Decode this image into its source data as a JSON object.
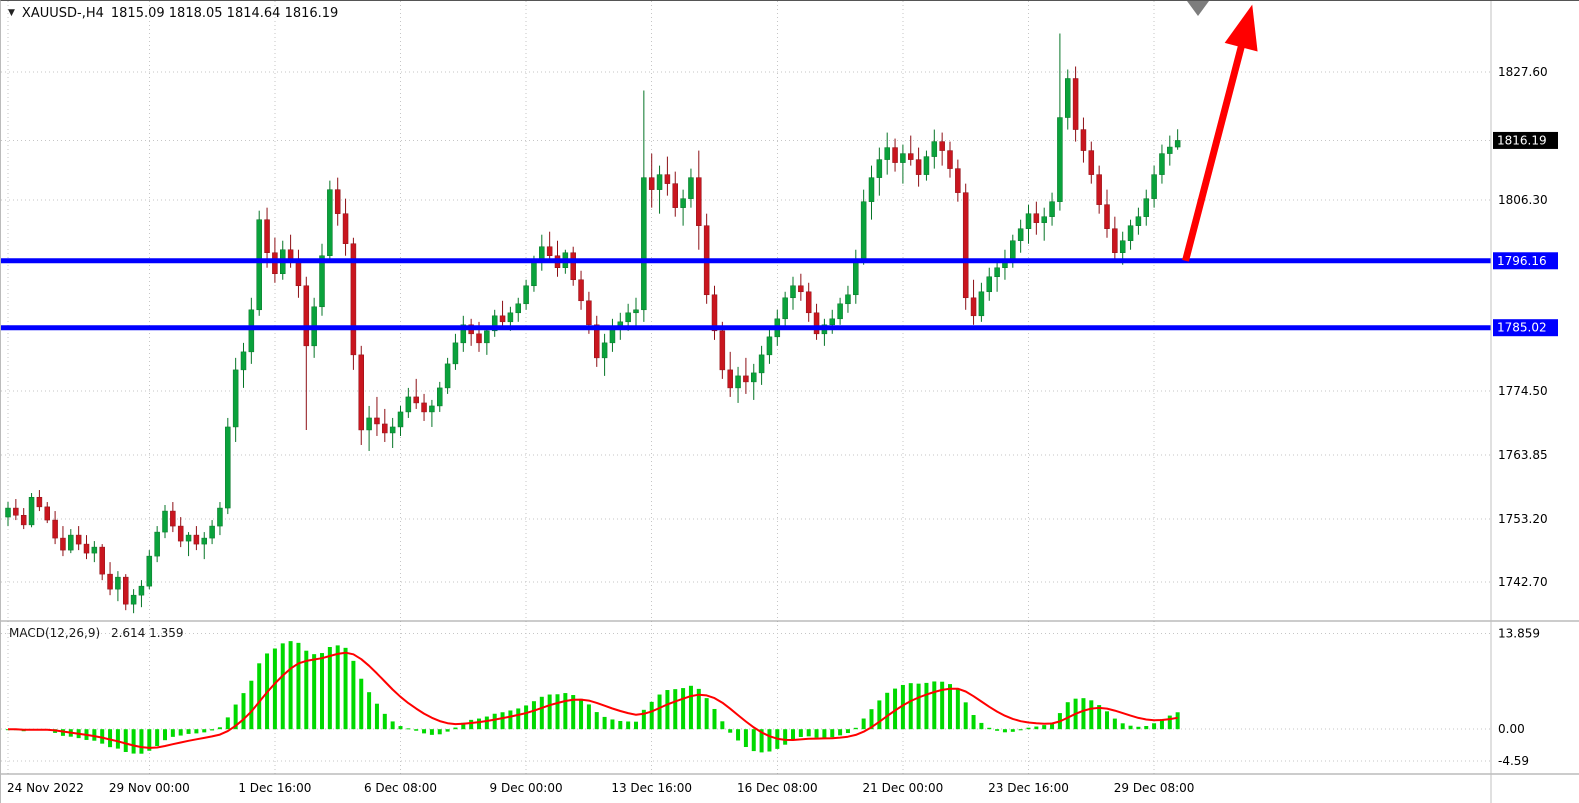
{
  "colors": {
    "up": "#0aa23c",
    "up_dark": "#067527",
    "down": "#c9161f",
    "down_dark": "#8d0f15",
    "grid": "#c6c6c6",
    "separator": "#9a9a9a",
    "axis_text": "#000000",
    "hline": "#0000ff",
    "arrow": "#ff0000",
    "macd_hist": "#00d900",
    "macd_signal": "#ff0000",
    "price_tag_bg": "#000000",
    "tag_text": "#ffffff",
    "marker_gray": "#7d7d7d"
  },
  "header": {
    "dropdown_icon": "▼",
    "symbol_tf": "XAUUSD-,H4",
    "ohlc_text": "1815.09 1818.05 1814.64 1816.19"
  },
  "chart_data": {
    "type": "candlestick",
    "symbol": "XAUUSD-",
    "timeframe": "H4",
    "last_bar_ohlc": {
      "open": 1815.09,
      "high": 1818.05,
      "low": 1814.64,
      "close": 1816.19
    },
    "price_axis": {
      "ylim": [
        1736.2,
        1839.4
      ],
      "ticks": [
        1827.6,
        1806.3,
        1774.5,
        1763.85,
        1753.2,
        1742.7
      ],
      "current_price": 1816.19
    },
    "hlines": [
      {
        "value": 1796.16,
        "label": "1796.16"
      },
      {
        "value": 1785.02,
        "label": "1785.02"
      }
    ],
    "x_labels": [
      {
        "text": "24 Nov 2022",
        "bar": 0
      },
      {
        "text": "29 Nov 00:00",
        "bar": 18
      },
      {
        "text": "1 Dec 16:00",
        "bar": 34
      },
      {
        "text": "6 Dec 08:00",
        "bar": 50
      },
      {
        "text": "9 Dec 00:00",
        "bar": 66
      },
      {
        "text": "13 Dec 16:00",
        "bar": 82
      },
      {
        "text": "16 Dec 08:00",
        "bar": 98
      },
      {
        "text": "21 Dec 00:00",
        "bar": 114
      },
      {
        "text": "23 Dec 16:00",
        "bar": 130
      },
      {
        "text": "29 Dec 08:00",
        "bar": 146
      }
    ],
    "candles": [
      [
        1753.5,
        1756.0,
        1752.0,
        1755.0
      ],
      [
        1755.0,
        1756.5,
        1753.0,
        1753.8
      ],
      [
        1753.8,
        1755.0,
        1751.5,
        1752.2
      ],
      [
        1752.2,
        1757.5,
        1751.8,
        1756.8
      ],
      [
        1756.8,
        1758.0,
        1754.5,
        1755.2
      ],
      [
        1755.2,
        1756.0,
        1752.5,
        1753.0
      ],
      [
        1753.0,
        1754.5,
        1749.0,
        1750.0
      ],
      [
        1750.0,
        1752.0,
        1747.0,
        1748.0
      ],
      [
        1748.0,
        1751.5,
        1747.5,
        1750.5
      ],
      [
        1750.5,
        1752.0,
        1748.0,
        1749.0
      ],
      [
        1749.0,
        1750.5,
        1746.5,
        1747.5
      ],
      [
        1747.5,
        1749.5,
        1746.0,
        1748.5
      ],
      [
        1748.5,
        1749.0,
        1743.0,
        1744.0
      ],
      [
        1744.0,
        1746.0,
        1740.5,
        1741.5
      ],
      [
        1741.5,
        1744.5,
        1739.5,
        1743.5
      ],
      [
        1743.5,
        1744.0,
        1738.0,
        1739.0
      ],
      [
        1739.0,
        1741.5,
        1737.5,
        1740.5
      ],
      [
        1740.5,
        1743.0,
        1738.5,
        1742.0
      ],
      [
        1742.0,
        1748.0,
        1741.5,
        1747.0
      ],
      [
        1747.0,
        1752.0,
        1746.0,
        1751.0
      ],
      [
        1751.0,
        1755.5,
        1750.0,
        1754.5
      ],
      [
        1754.5,
        1756.0,
        1751.0,
        1752.0
      ],
      [
        1752.0,
        1753.5,
        1748.5,
        1749.5
      ],
      [
        1749.5,
        1751.0,
        1747.0,
        1750.5
      ],
      [
        1750.5,
        1752.0,
        1748.0,
        1749.0
      ],
      [
        1749.0,
        1751.0,
        1746.5,
        1750.0
      ],
      [
        1750.0,
        1753.0,
        1749.0,
        1752.0
      ],
      [
        1752.0,
        1756.0,
        1750.5,
        1755.0
      ],
      [
        1755.0,
        1770.0,
        1754.0,
        1768.5
      ],
      [
        1768.5,
        1780.0,
        1766.0,
        1778.0
      ],
      [
        1778.0,
        1782.5,
        1775.0,
        1781.0
      ],
      [
        1781.0,
        1790.0,
        1779.0,
        1788.0
      ],
      [
        1788.0,
        1804.5,
        1787.0,
        1803.0
      ],
      [
        1803.0,
        1805.0,
        1795.0,
        1797.5
      ],
      [
        1797.5,
        1800.0,
        1792.5,
        1794.0
      ],
      [
        1794.0,
        1799.5,
        1793.0,
        1798.0
      ],
      [
        1798.0,
        1800.5,
        1795.0,
        1796.5
      ],
      [
        1796.5,
        1798.0,
        1790.0,
        1792.0
      ],
      [
        1792.0,
        1793.5,
        1768.0,
        1782.0
      ],
      [
        1782.0,
        1790.0,
        1780.0,
        1788.5
      ],
      [
        1788.5,
        1799.0,
        1787.0,
        1797.0
      ],
      [
        1797.0,
        1809.5,
        1796.0,
        1808.0
      ],
      [
        1808.0,
        1810.0,
        1802.0,
        1804.0
      ],
      [
        1804.0,
        1806.5,
        1797.0,
        1799.0
      ],
      [
        1799.0,
        1800.0,
        1778.0,
        1780.5
      ],
      [
        1780.5,
        1782.0,
        1765.5,
        1768.0
      ],
      [
        1768.0,
        1772.0,
        1764.5,
        1770.0
      ],
      [
        1770.0,
        1773.5,
        1767.0,
        1769.0
      ],
      [
        1769.0,
        1771.5,
        1766.0,
        1767.5
      ],
      [
        1767.5,
        1770.0,
        1765.0,
        1768.5
      ],
      [
        1768.5,
        1772.0,
        1767.0,
        1771.0
      ],
      [
        1771.0,
        1775.0,
        1770.0,
        1773.5
      ],
      [
        1773.5,
        1776.5,
        1771.5,
        1772.5
      ],
      [
        1772.5,
        1774.0,
        1769.5,
        1771.0
      ],
      [
        1771.0,
        1773.0,
        1768.5,
        1772.0
      ],
      [
        1772.0,
        1776.0,
        1771.0,
        1775.0
      ],
      [
        1775.0,
        1780.0,
        1774.0,
        1779.0
      ],
      [
        1779.0,
        1784.0,
        1778.0,
        1782.5
      ],
      [
        1782.5,
        1787.0,
        1781.0,
        1785.5
      ],
      [
        1785.5,
        1786.5,
        1782.0,
        1784.0
      ],
      [
        1784.0,
        1786.0,
        1781.0,
        1782.5
      ],
      [
        1782.5,
        1785.0,
        1780.5,
        1784.5
      ],
      [
        1784.5,
        1788.0,
        1783.5,
        1787.0
      ],
      [
        1787.0,
        1789.5,
        1785.0,
        1786.0
      ],
      [
        1786.0,
        1788.5,
        1784.5,
        1787.5
      ],
      [
        1787.5,
        1790.0,
        1786.0,
        1789.0
      ],
      [
        1789.0,
        1793.0,
        1788.0,
        1792.0
      ],
      [
        1792.0,
        1797.0,
        1791.0,
        1796.0
      ],
      [
        1796.0,
        1800.5,
        1794.5,
        1798.5
      ],
      [
        1798.5,
        1801.0,
        1796.0,
        1797.0
      ],
      [
        1797.0,
        1799.5,
        1793.5,
        1795.0
      ],
      [
        1795.0,
        1798.0,
        1794.0,
        1797.5
      ],
      [
        1797.5,
        1798.5,
        1792.0,
        1793.0
      ],
      [
        1793.0,
        1794.5,
        1788.0,
        1789.5
      ],
      [
        1789.5,
        1791.0,
        1784.0,
        1785.5
      ],
      [
        1785.5,
        1787.0,
        1778.5,
        1780.0
      ],
      [
        1780.0,
        1784.0,
        1777.0,
        1782.5
      ],
      [
        1782.5,
        1786.5,
        1781.0,
        1785.0
      ],
      [
        1785.0,
        1787.5,
        1783.0,
        1786.0
      ],
      [
        1786.0,
        1789.0,
        1784.5,
        1787.5
      ],
      [
        1787.5,
        1790.0,
        1785.0,
        1788.0
      ],
      [
        1788.0,
        1824.5,
        1786.0,
        1810.0
      ],
      [
        1810.0,
        1814.0,
        1805.0,
        1808.0
      ],
      [
        1808.0,
        1812.0,
        1804.0,
        1810.5
      ],
      [
        1810.5,
        1813.5,
        1807.0,
        1809.0
      ],
      [
        1809.0,
        1811.0,
        1803.5,
        1805.0
      ],
      [
        1805.0,
        1808.0,
        1802.0,
        1806.5
      ],
      [
        1806.5,
        1811.5,
        1805.0,
        1810.0
      ],
      [
        1810.0,
        1814.5,
        1798.0,
        1802.0
      ],
      [
        1802.0,
        1804.0,
        1789.0,
        1790.5
      ],
      [
        1790.5,
        1792.0,
        1783.0,
        1784.5
      ],
      [
        1784.5,
        1786.0,
        1776.5,
        1778.0
      ],
      [
        1778.0,
        1781.0,
        1773.5,
        1775.0
      ],
      [
        1775.0,
        1778.5,
        1772.5,
        1777.0
      ],
      [
        1777.0,
        1780.0,
        1774.0,
        1776.0
      ],
      [
        1776.0,
        1779.0,
        1773.0,
        1777.5
      ],
      [
        1777.5,
        1782.0,
        1775.5,
        1780.5
      ],
      [
        1780.5,
        1785.0,
        1779.0,
        1783.5
      ],
      [
        1783.5,
        1788.0,
        1782.0,
        1786.5
      ],
      [
        1786.5,
        1791.0,
        1785.0,
        1790.0
      ],
      [
        1790.0,
        1793.5,
        1788.0,
        1792.0
      ],
      [
        1792.0,
        1794.0,
        1789.5,
        1791.0
      ],
      [
        1791.0,
        1792.5,
        1786.0,
        1787.5
      ],
      [
        1787.5,
        1789.0,
        1783.0,
        1784.0
      ],
      [
        1784.0,
        1786.5,
        1782.0,
        1785.5
      ],
      [
        1785.5,
        1788.0,
        1784.0,
        1786.5
      ],
      [
        1786.5,
        1790.0,
        1785.5,
        1789.0
      ],
      [
        1789.0,
        1792.0,
        1787.5,
        1790.5
      ],
      [
        1790.5,
        1798.0,
        1789.0,
        1796.5
      ],
      [
        1796.5,
        1808.0,
        1795.5,
        1806.0
      ],
      [
        1806.0,
        1812.0,
        1803.0,
        1810.0
      ],
      [
        1810.0,
        1815.0,
        1807.0,
        1813.0
      ],
      [
        1813.0,
        1817.5,
        1810.5,
        1815.0
      ],
      [
        1815.0,
        1816.5,
        1811.0,
        1812.5
      ],
      [
        1812.5,
        1815.5,
        1809.0,
        1814.0
      ],
      [
        1814.0,
        1817.0,
        1812.0,
        1813.0
      ],
      [
        1813.0,
        1815.0,
        1808.5,
        1810.5
      ],
      [
        1810.5,
        1814.5,
        1809.5,
        1813.5
      ],
      [
        1813.5,
        1818.0,
        1811.5,
        1816.0
      ],
      [
        1816.0,
        1817.5,
        1812.0,
        1814.5
      ],
      [
        1814.5,
        1816.0,
        1810.0,
        1811.5
      ],
      [
        1811.5,
        1813.0,
        1806.0,
        1807.5
      ],
      [
        1807.5,
        1809.0,
        1788.0,
        1790.0
      ],
      [
        1790.0,
        1793.0,
        1785.5,
        1787.0
      ],
      [
        1787.0,
        1792.5,
        1786.0,
        1791.0
      ],
      [
        1791.0,
        1795.0,
        1789.5,
        1793.5
      ],
      [
        1793.5,
        1796.5,
        1791.0,
        1795.0
      ],
      [
        1795.0,
        1798.0,
        1793.0,
        1796.5
      ],
      [
        1796.5,
        1800.5,
        1795.0,
        1799.5
      ],
      [
        1799.5,
        1803.0,
        1797.5,
        1801.5
      ],
      [
        1801.5,
        1805.5,
        1799.0,
        1804.0
      ],
      [
        1804.0,
        1806.0,
        1800.5,
        1802.5
      ],
      [
        1802.5,
        1805.0,
        1799.5,
        1803.5
      ],
      [
        1803.5,
        1807.5,
        1802.0,
        1806.0
      ],
      [
        1806.0,
        1834.0,
        1804.5,
        1820.0
      ],
      [
        1820.0,
        1828.0,
        1818.0,
        1826.5
      ],
      [
        1826.5,
        1828.5,
        1816.0,
        1818.0
      ],
      [
        1818.0,
        1820.0,
        1812.5,
        1814.5
      ],
      [
        1814.5,
        1816.0,
        1809.0,
        1810.5
      ],
      [
        1810.5,
        1812.0,
        1804.0,
        1805.5
      ],
      [
        1805.5,
        1808.0,
        1800.0,
        1801.5
      ],
      [
        1801.5,
        1803.5,
        1796.0,
        1797.5
      ],
      [
        1797.5,
        1801.0,
        1795.5,
        1799.5
      ],
      [
        1799.5,
        1803.0,
        1798.0,
        1802.0
      ],
      [
        1802.0,
        1805.0,
        1800.5,
        1803.5
      ],
      [
        1803.5,
        1808.0,
        1802.0,
        1806.5
      ],
      [
        1806.5,
        1812.0,
        1805.0,
        1810.5
      ],
      [
        1810.5,
        1815.5,
        1809.0,
        1814.0
      ],
      [
        1814.0,
        1817.0,
        1812.0,
        1815.09
      ],
      [
        1815.09,
        1818.05,
        1814.64,
        1816.19
      ]
    ],
    "macd": {
      "label": "MACD(12,26,9)",
      "values_text": "2.614 1.359",
      "params": [
        12,
        26,
        9
      ],
      "ylim": [
        -6.5,
        15.4
      ],
      "ticks": [
        {
          "value": 13.859,
          "label": "13.859"
        },
        {
          "value": 0,
          "label": "0.00"
        },
        {
          "value": -4.59,
          "label": "-4.59"
        }
      ]
    },
    "annotations": {
      "trend_arrow": {
        "from_bar": 150,
        "from_price": 1796.16,
        "to_bar": 158.5,
        "to_price": 1838.8,
        "direction": "up"
      }
    }
  }
}
